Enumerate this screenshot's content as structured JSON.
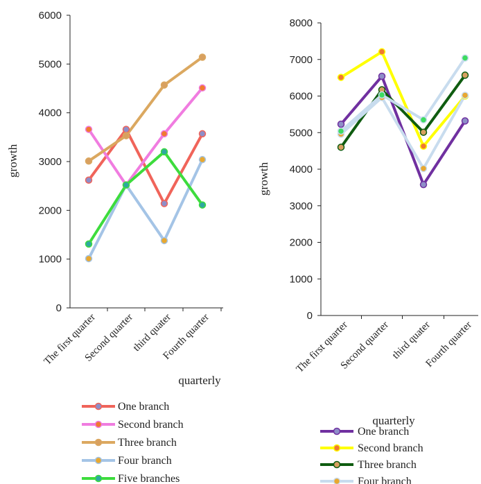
{
  "chart_data": [
    {
      "type": "line",
      "categories": [
        "The first quarter",
        "Second quarter",
        "third quater",
        "Fourth quarter"
      ],
      "xlabel": "quarterly",
      "ylabel": "growth",
      "ylim": [
        0,
        6000
      ],
      "yticks": [
        0,
        1000,
        2000,
        3000,
        4000,
        5000,
        6000
      ],
      "grid": false,
      "legend_position": "bottom",
      "series": [
        {
          "name": "One branch",
          "values": [
            2620,
            3660,
            2140,
            3570
          ],
          "color": "#f0645a",
          "marker": "#8e8ec8"
        },
        {
          "name": "Second branch",
          "values": [
            3660,
            2520,
            3570,
            4510
          ],
          "color": "#f07ce0",
          "marker": "#f07a30"
        },
        {
          "name": "Three branch",
          "values": [
            3010,
            3530,
            4570,
            5140
          ],
          "color": "#dba860",
          "marker": "#d8a060"
        },
        {
          "name": "Four branch",
          "values": [
            1010,
            2520,
            1380,
            3040
          ],
          "color": "#a4c4e6",
          "marker": "#e8a830"
        },
        {
          "name": "Five branches",
          "values": [
            1310,
            2520,
            3200,
            2110
          ],
          "color": "#3ddc3d",
          "marker": "#2ea8a0"
        }
      ]
    },
    {
      "type": "line",
      "categories": [
        "The first quarter",
        "Second quarter",
        "third quater",
        "Fourth quarter"
      ],
      "xlabel": "quarterly",
      "ylabel": "growth",
      "ylim": [
        0,
        8000
      ],
      "yticks": [
        0,
        1000,
        2000,
        3000,
        4000,
        5000,
        6000,
        7000,
        8000
      ],
      "grid": false,
      "legend_position": "bottom",
      "series": [
        {
          "name": "One branch",
          "values": [
            5230,
            6540,
            3580,
            5320
          ],
          "color": "#7030a0",
          "marker": "#8e8ec8"
        },
        {
          "name": "Second branch",
          "values": [
            6510,
            7210,
            4630,
            6000
          ],
          "color": "#ffff00",
          "marker": "#f07a30"
        },
        {
          "name": "Three branch",
          "values": [
            4600,
            6170,
            5010,
            6570
          ],
          "color": "#0f5c10",
          "marker": "#d8a060"
        },
        {
          "name": "Four branch",
          "values": [
            4960,
            5960,
            4020,
            6020
          ],
          "color": "#c8dcee",
          "marker": "#e8a830"
        },
        {
          "name": "",
          "values": [
            5040,
            6030,
            5350,
            7040
          ],
          "color": "#c8dcee",
          "marker": "#3ddc60"
        }
      ]
    }
  ]
}
